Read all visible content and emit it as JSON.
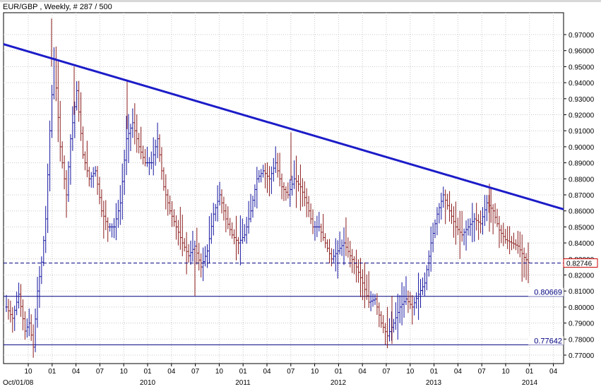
{
  "chart_data": {
    "type": "bar",
    "title": "EUR/GBP , Weekly, # 287 / 500",
    "symbol": "EUR/GBP",
    "timeframe": "Weekly",
    "bar_count_label": "# 287 / 500",
    "ylim": [
      0.765,
      0.98
    ],
    "y_ticks": [
      "0.97000",
      "0.96000",
      "0.95000",
      "0.94000",
      "0.93000",
      "0.92000",
      "0.91000",
      "0.90000",
      "0.89000",
      "0.88000",
      "0.87000",
      "0.86000",
      "0.85000",
      "0.84000",
      "0.83000",
      "0.82000",
      "0.81000",
      "0.80000",
      "0.79000",
      "0.78000",
      "0.77000"
    ],
    "x_tick_labels": [
      "10",
      "01",
      "04",
      "07",
      "10",
      "01",
      "04",
      "07",
      "10",
      "01",
      "04",
      "07",
      "10",
      "01",
      "04",
      "07",
      "10",
      "01",
      "04",
      "07",
      "10",
      "01",
      "04"
    ],
    "x_date_labels": [
      "Oct/01/08",
      "2010",
      "2011",
      "2012",
      "2013",
      "2014"
    ],
    "grid": true,
    "current_price": {
      "value": 0.82746,
      "label": "0.82746"
    },
    "horizontal_levels": [
      {
        "value": 0.80669,
        "label": "0.80669"
      },
      {
        "value": 0.77642,
        "label": "0.77642"
      }
    ],
    "trendline": {
      "start": {
        "date": "2008-09",
        "value": 0.964
      },
      "end": {
        "date": "2014-04",
        "value": 0.861
      }
    },
    "colors": {
      "up": "#1414a0",
      "down": "#8b1c1c",
      "trendline": "#1c1cc8",
      "level": "#000080",
      "grid": "#c8c8c8",
      "price_box": "#c80000"
    },
    "price_path": [
      [
        0,
        0.8
      ],
      [
        3,
        0.793
      ],
      [
        6,
        0.808
      ],
      [
        9,
        0.785
      ],
      [
        11,
        0.79
      ],
      [
        13,
        0.775
      ],
      [
        15,
        0.81
      ],
      [
        17,
        0.828
      ],
      [
        19,
        0.855
      ],
      [
        21,
        0.91
      ],
      [
        23,
        0.955
      ],
      [
        26,
        0.9
      ],
      [
        29,
        0.87
      ],
      [
        31,
        0.905
      ],
      [
        34,
        0.935
      ],
      [
        37,
        0.895
      ],
      [
        40,
        0.88
      ],
      [
        43,
        0.885
      ],
      [
        46,
        0.86
      ],
      [
        49,
        0.85
      ],
      [
        52,
        0.85
      ],
      [
        55,
        0.865
      ],
      [
        58,
        0.905
      ],
      [
        61,
        0.915
      ],
      [
        64,
        0.9
      ],
      [
        67,
        0.89
      ],
      [
        70,
        0.89
      ],
      [
        73,
        0.905
      ],
      [
        76,
        0.875
      ],
      [
        79,
        0.86
      ],
      [
        82,
        0.85
      ],
      [
        85,
        0.84
      ],
      [
        88,
        0.832
      ],
      [
        91,
        0.838
      ],
      [
        94,
        0.825
      ],
      [
        97,
        0.835
      ],
      [
        100,
        0.858
      ],
      [
        103,
        0.87
      ],
      [
        106,
        0.855
      ],
      [
        109,
        0.845
      ],
      [
        112,
        0.84
      ],
      [
        115,
        0.845
      ],
      [
        118,
        0.86
      ],
      [
        121,
        0.88
      ],
      [
        124,
        0.885
      ],
      [
        127,
        0.88
      ],
      [
        130,
        0.89
      ],
      [
        133,
        0.875
      ],
      [
        136,
        0.87
      ],
      [
        139,
        0.88
      ],
      [
        142,
        0.875
      ],
      [
        145,
        0.865
      ],
      [
        148,
        0.85
      ],
      [
        151,
        0.85
      ],
      [
        154,
        0.84
      ],
      [
        157,
        0.83
      ],
      [
        160,
        0.835
      ],
      [
        163,
        0.84
      ],
      [
        166,
        0.832
      ],
      [
        169,
        0.825
      ],
      [
        172,
        0.815
      ],
      [
        175,
        0.803
      ],
      [
        178,
        0.805
      ],
      [
        181,
        0.79
      ],
      [
        184,
        0.782
      ],
      [
        187,
        0.79
      ],
      [
        190,
        0.8
      ],
      [
        193,
        0.805
      ],
      [
        196,
        0.8
      ],
      [
        199,
        0.808
      ],
      [
        202,
        0.815
      ],
      [
        205,
        0.84
      ],
      [
        208,
        0.858
      ],
      [
        211,
        0.87
      ],
      [
        214,
        0.86
      ],
      [
        217,
        0.85
      ],
      [
        220,
        0.845
      ],
      [
        223,
        0.85
      ],
      [
        226,
        0.855
      ],
      [
        229,
        0.852
      ],
      [
        232,
        0.865
      ],
      [
        235,
        0.86
      ],
      [
        238,
        0.848
      ],
      [
        241,
        0.842
      ],
      [
        244,
        0.84
      ],
      [
        247,
        0.838
      ],
      [
        250,
        0.831
      ],
      [
        252,
        0.828
      ]
    ]
  }
}
